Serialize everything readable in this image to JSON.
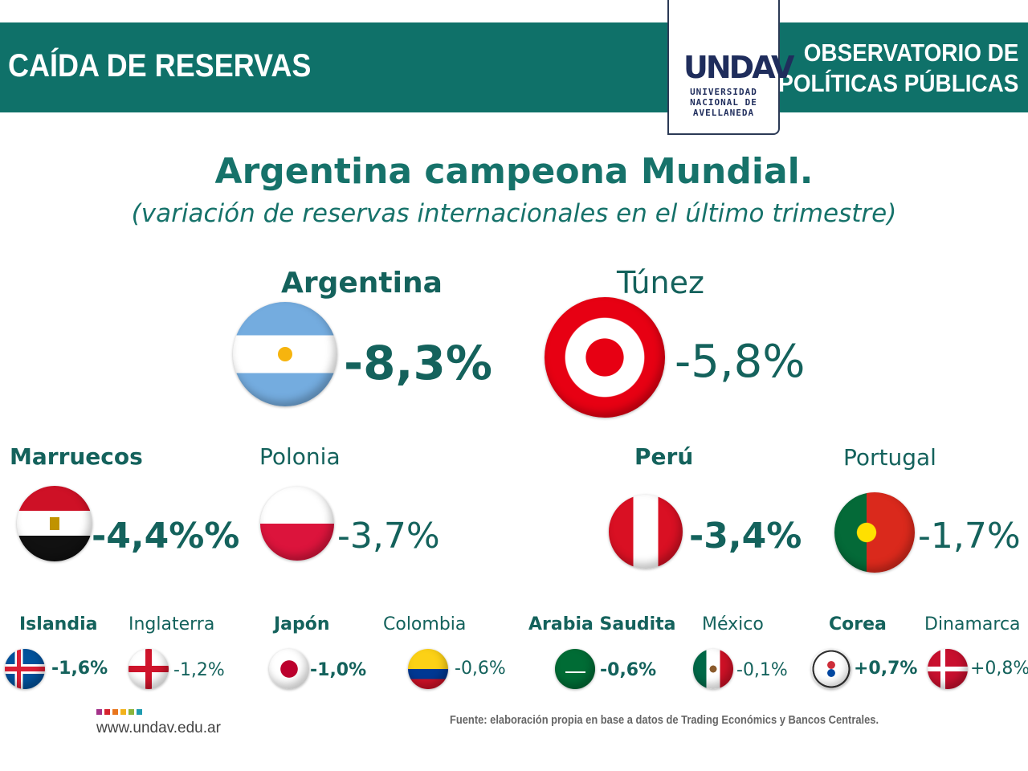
{
  "header": {
    "title": "CAÍDA DE RESERVAS",
    "observatory_line1": "OBSERVATORIO DE",
    "observatory_line2": "POLÍTICAS PÚBLICAS",
    "logo": {
      "mark": "UNDAV",
      "line1": "UNIVERSIDAD",
      "line2": "NACIONAL DE",
      "line3": "AVELLANEDA"
    }
  },
  "headline": "Argentina campeona Mundial.",
  "subtitle": "(variación de reservas internacionales en el último trimestre)",
  "countries": [
    {
      "name": "Argentina",
      "value": "-8,3%",
      "flag": "argentina-flag-icon",
      "bold": true
    },
    {
      "name": "Túnez",
      "value": "-5,8%",
      "flag": "tunisia-flag-icon",
      "bold": false
    },
    {
      "name": "Marruecos",
      "value": "-4,4%%",
      "flag": "egypt-flag-icon",
      "bold": true
    },
    {
      "name": "Polonia",
      "value": "-3,7%",
      "flag": "poland-flag-icon",
      "bold": false
    },
    {
      "name": "Perú",
      "value": "-3,4%",
      "flag": "peru-flag-icon",
      "bold": true
    },
    {
      "name": "Portugal",
      "value": "-1,7%",
      "flag": "portugal-flag-icon",
      "bold": false
    },
    {
      "name": "Islandia",
      "value": "-1,6%",
      "flag": "iceland-flag-icon",
      "bold": true
    },
    {
      "name": "Inglaterra",
      "value": "-1,2%",
      "flag": "england-flag-icon",
      "bold": false
    },
    {
      "name": "Japón",
      "value": "-1,0%",
      "flag": "japan-flag-icon",
      "bold": true
    },
    {
      "name": "Colombia",
      "value": "-0,6%",
      "flag": "colombia-flag-icon",
      "bold": false
    },
    {
      "name": "Arabia Saudita",
      "value": "-0,6%",
      "flag": "saudi-arabia-flag-icon",
      "bold": true
    },
    {
      "name": "México",
      "value": "-0,1%",
      "flag": "mexico-flag-icon",
      "bold": false
    },
    {
      "name": "Corea",
      "value": "+0,7%",
      "flag": "korea-flag-icon",
      "bold": true
    },
    {
      "name": "Dinamarca",
      "value": "+0,8%",
      "flag": "denmark-flag-icon",
      "bold": false
    }
  ],
  "footer": {
    "website": "www.undav.edu.ar",
    "source": "Fuente: elaboración propia en base a datos de Trading Económics y Bancos Centrales.",
    "dot_colors": [
      "#a3328a",
      "#d6232f",
      "#e8761e",
      "#f2b21b",
      "#8bb43a",
      "#1f9bb0"
    ]
  },
  "colors": {
    "brand": "#0f7169",
    "text": "#14625c",
    "logo": "#1f2d5c"
  }
}
